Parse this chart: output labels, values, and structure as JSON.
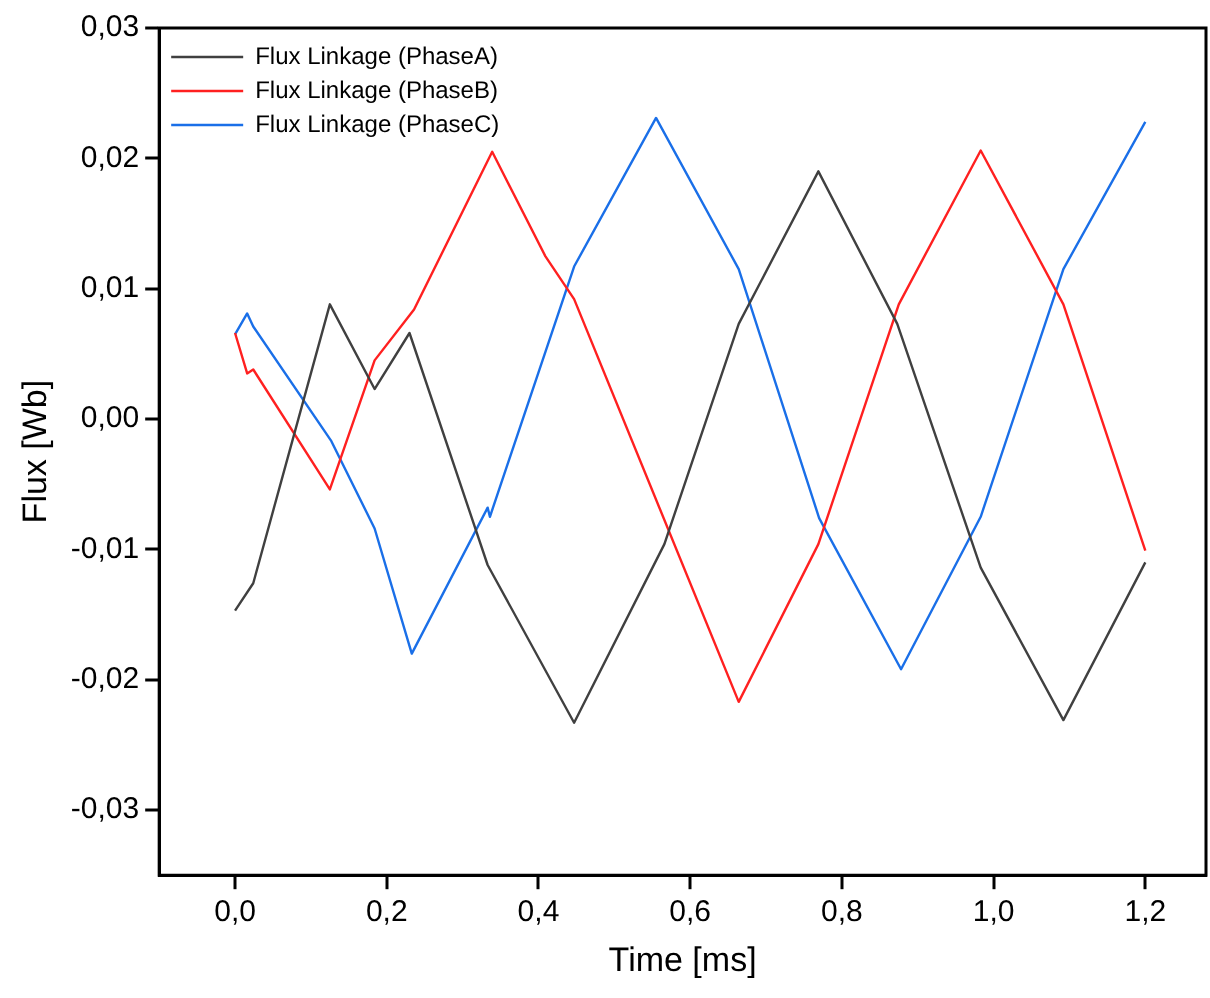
{
  "chart_data": {
    "type": "line",
    "xlabel": "Time [ms]",
    "ylabel": "Flux [Wb]",
    "xlim": [
      -0.1,
      1.28
    ],
    "ylim": [
      -0.035,
      0.03
    ],
    "xticks": [
      {
        "value": 0,
        "label": "0,0"
      },
      {
        "value": 0.2,
        "label": "0,2"
      },
      {
        "value": 0.4,
        "label": "0,4"
      },
      {
        "value": 0.6,
        "label": "0,6"
      },
      {
        "value": 0.8,
        "label": "0,8"
      },
      {
        "value": 1.0,
        "label": "1,0"
      },
      {
        "value": 1.2,
        "label": "1,2"
      }
    ],
    "yticks": [
      {
        "value": -0.03,
        "label": "-0,03"
      },
      {
        "value": -0.02,
        "label": "-0,02"
      },
      {
        "value": -0.01,
        "label": "-0,01"
      },
      {
        "value": 0,
        "label": "0,00"
      },
      {
        "value": 0.01,
        "label": "0,01"
      },
      {
        "value": 0.02,
        "label": "0,02"
      },
      {
        "value": 0.03,
        "label": "0,03"
      }
    ],
    "grid": false,
    "legend": "top left",
    "marker": "none",
    "line_style": "solid",
    "series": [
      {
        "name": "Flux Linkage (PhaseA)",
        "color": "#404040",
        "x": [
          0,
          0.024,
          0.125,
          0.184,
          0.23,
          0.333,
          0.447,
          0.566,
          0.664,
          0.769,
          0.873,
          0.983,
          1.092,
          1.2
        ],
        "values": [
          -0.0147,
          -0.0126,
          0.0088,
          0.0023,
          0.0066,
          -0.0112,
          -0.0233,
          -0.0096,
          0.0073,
          0.019,
          0.0073,
          -0.0114,
          -0.0231,
          -0.011
        ]
      },
      {
        "name": "Flux Linkage (PhaseB)",
        "color": "#ff2020",
        "x": [
          0,
          0.016,
          0.024,
          0.125,
          0.184,
          0.236,
          0.339,
          0.409,
          0.447,
          0.664,
          0.769,
          0.875,
          0.983,
          1.092,
          1.2
        ],
        "values": [
          0.0066,
          0.0035,
          0.0038,
          -0.0054,
          0.0045,
          0.0084,
          0.0205,
          0.0125,
          0.0092,
          -0.0217,
          -0.0096,
          0.0088,
          0.0206,
          0.0088,
          -0.0101
        ]
      },
      {
        "name": "Flux Linkage (PhaseC)",
        "color": "#1a6fe8",
        "x": [
          0,
          0.016,
          0.024,
          0.127,
          0.184,
          0.233,
          0.333,
          0.336,
          0.447,
          0.555,
          0.664,
          0.77,
          0.878,
          0.983,
          1.092,
          1.2
        ],
        "values": [
          0.0065,
          0.0081,
          0.0071,
          -0.0017,
          -0.0084,
          -0.018,
          -0.0068,
          -0.0075,
          0.0117,
          0.0231,
          0.0115,
          -0.0076,
          -0.0192,
          -0.0075,
          0.0115,
          0.0228
        ]
      }
    ]
  }
}
